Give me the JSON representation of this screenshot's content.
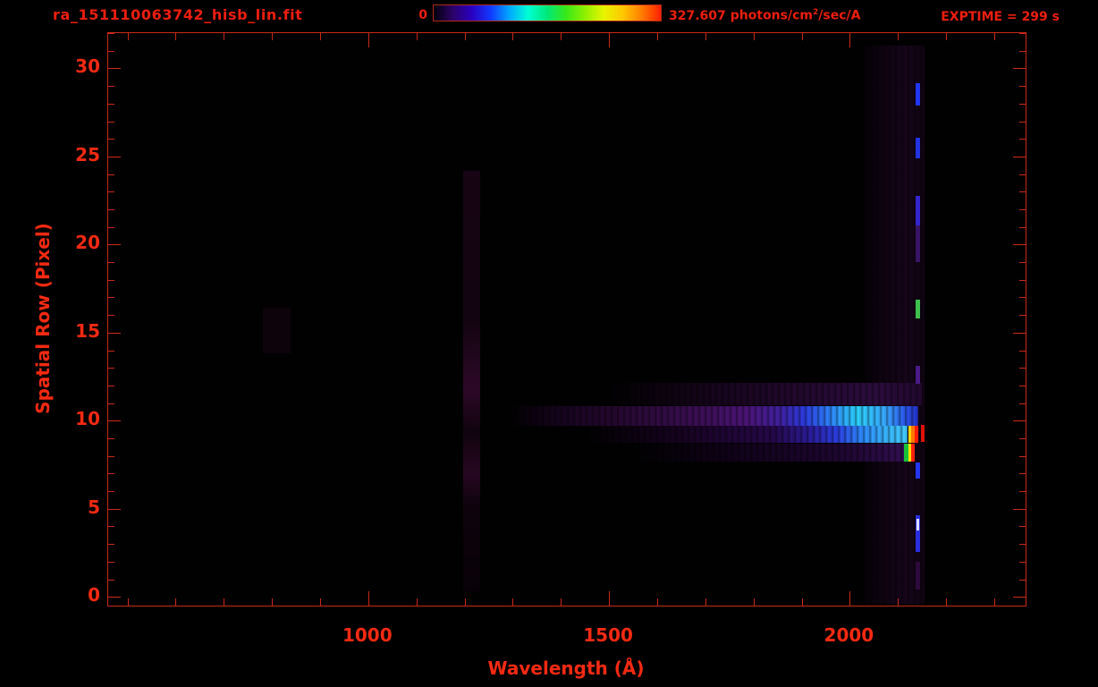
{
  "header": {
    "title": "ra_151110063742_hisb_lin.fit",
    "exptime": "EXPTIME = 299 s",
    "colorbar": {
      "min_label": "0",
      "max_value": "327.607",
      "unit_a": "photons/cm",
      "unit_exp": "2",
      "unit_b": "/sec/A",
      "gradient_stops": [
        "#02000a",
        "#2c0266",
        "#2a00c0",
        "#1238ff",
        "#00a8ff",
        "#00ffd4",
        "#00e87a",
        "#38e818",
        "#90f000",
        "#e8f400",
        "#ffc800",
        "#ff7c00",
        "#ff2000"
      ]
    }
  },
  "colors": {
    "annotation_red": "#ee1e0e",
    "axis_red": "#ca2917",
    "tick_label_red": "#f52a12",
    "background": "#000000"
  },
  "chart_data": {
    "type": "heatmap",
    "title": "ra_151110063742_hisb_lin.fit",
    "xlabel": "Wavelength (Å)",
    "ylabel": "Spatial Row (Pixel)",
    "xlim": [
      460,
      2365
    ],
    "ylim": [
      -0.5,
      32
    ],
    "x_major_ticks": [
      1000,
      1500,
      2000
    ],
    "x_minor_tick_step": 100,
    "x_minor_tick_range": [
      500,
      2300
    ],
    "y_major_ticks": [
      0,
      5,
      10,
      15,
      20,
      25,
      30
    ],
    "y_minor_tick_step": 1,
    "grid": false,
    "colorbar": {
      "min": 0,
      "max": 327.607,
      "units": "photons/cm²/sec/A",
      "position": "top"
    },
    "exposure": "EXPTIME = 299 s",
    "features": [
      {
        "name": "lyman-alpha-airglow-band",
        "wl": [
          1197,
          1233
        ],
        "rows": [
          0.3,
          24.2
        ],
        "orient": "v",
        "gradient": [
          {
            "at": 0,
            "color": "rgba(40,7,34,0.55)"
          },
          {
            "at": 35,
            "color": "rgba(34,6,30,0.5)"
          },
          {
            "at": 52,
            "color": "rgba(52,10,46,0.85)"
          },
          {
            "at": 62,
            "color": "rgba(30,5,26,0.5)"
          },
          {
            "at": 72,
            "color": "rgba(48,9,42,0.8)"
          },
          {
            "at": 80,
            "color": "rgba(28,5,24,0.45)"
          },
          {
            "at": 100,
            "color": "rgba(20,3,18,0.35)"
          }
        ]
      },
      {
        "name": "faint-continuum-smudge",
        "wl": [
          782,
          838
        ],
        "rows": [
          13.8,
          16.4
        ],
        "color": "rgba(26,5,22,0.45)"
      },
      {
        "name": "airglow-striated-band",
        "wl": [
          2028,
          2156
        ],
        "rows": [
          -0.4,
          31.3
        ],
        "orient": "h",
        "striation": true,
        "gradient": [
          {
            "at": 0,
            "color": "rgba(24,5,28,0.08)"
          },
          {
            "at": 25,
            "color": "rgba(30,7,36,0.4)"
          },
          {
            "at": 70,
            "color": "rgba(36,8,42,0.62)"
          },
          {
            "at": 100,
            "color": "rgba(28,6,32,0.5)"
          }
        ]
      },
      {
        "name": "continuum-band-row12",
        "wl": [
          1500,
          2150
        ],
        "rows": [
          10.85,
          12.15
        ],
        "orient": "h",
        "striation": true,
        "gradient": [
          {
            "at": 0,
            "color": "rgba(18,3,22,0)"
          },
          {
            "at": 30,
            "color": "rgba(24,5,30,0.85)"
          },
          {
            "at": 60,
            "color": "rgba(34,8,46,1)"
          },
          {
            "at": 85,
            "color": "rgba(44,12,62,1)"
          },
          {
            "at": 100,
            "color": "rgba(34,8,46,1)"
          }
        ]
      },
      {
        "name": "continuum-band-row10",
        "wl": [
          1295,
          2142
        ],
        "rows": [
          9.7,
          10.85
        ],
        "orient": "h",
        "striation": true,
        "gradient": [
          {
            "at": 0,
            "color": "rgba(6,0,8,0)"
          },
          {
            "at": 12,
            "color": "#16041e"
          },
          {
            "at": 30,
            "color": "#2a0936"
          },
          {
            "at": 48,
            "color": "#3d0f58"
          },
          {
            "at": 58,
            "color": "#4c1478"
          },
          {
            "at": 66,
            "color": "#41209f"
          },
          {
            "at": 72,
            "color": "#2c3ae0"
          },
          {
            "at": 78,
            "color": "#2e7ffa"
          },
          {
            "at": 85,
            "color": "#2cd2ff"
          },
          {
            "at": 92,
            "color": "#38a8ff"
          },
          {
            "at": 97,
            "color": "#2a55ee"
          },
          {
            "at": 100,
            "color": "#2330c4"
          }
        ]
      },
      {
        "name": "continuum-band-row9",
        "wl": [
          1455,
          2120
        ],
        "rows": [
          8.75,
          9.7
        ],
        "orient": "h",
        "striation": true,
        "gradient": [
          {
            "at": 0,
            "color": "rgba(10,1,14,0)"
          },
          {
            "at": 30,
            "color": "#180322"
          },
          {
            "at": 58,
            "color": "#26084a"
          },
          {
            "at": 70,
            "color": "#2c1d9e"
          },
          {
            "at": 78,
            "color": "#2b3ee0"
          },
          {
            "at": 86,
            "color": "#2e8cff"
          },
          {
            "at": 94,
            "color": "#38b8ff"
          },
          {
            "at": 100,
            "color": "#42ccff"
          }
        ]
      },
      {
        "name": "peak-emission-yellow-line",
        "wl": [
          2121,
          2128
        ],
        "rows": [
          8.75,
          9.7
        ],
        "color": "#ffd400"
      },
      {
        "name": "peak-emission-orange-line",
        "wl": [
          2128,
          2134
        ],
        "rows": [
          8.75,
          9.7
        ],
        "color": "#ff7800"
      },
      {
        "name": "peak-emission-red-line",
        "wl": [
          2134,
          2142
        ],
        "rows": [
          8.75,
          9.7
        ],
        "color": "#ff1c06"
      },
      {
        "name": "isolated-red-line",
        "wl": [
          2147,
          2155
        ],
        "rows": [
          8.8,
          9.75
        ],
        "color": "#e01208"
      },
      {
        "name": "continuum-band-row8",
        "wl": [
          1560,
          2113
        ],
        "rows": [
          7.65,
          8.7
        ],
        "orient": "h",
        "striation": true,
        "gradient": [
          {
            "at": 0,
            "color": "rgba(12,1,16,0)"
          },
          {
            "at": 45,
            "color": "#140320"
          },
          {
            "at": 75,
            "color": "#1e0630"
          },
          {
            "at": 92,
            "color": "#2a0b44"
          },
          {
            "at": 100,
            "color": "#331054"
          }
        ]
      },
      {
        "name": "row8-peak-green-line",
        "wl": [
          2113,
          2121
        ],
        "rows": [
          7.65,
          8.7
        ],
        "color": "#18c238"
      },
      {
        "name": "row8-peak-yellow-line",
        "wl": [
          2121,
          2127
        ],
        "rows": [
          7.65,
          8.7
        ],
        "color": "#ffe000"
      },
      {
        "name": "row8-peak-red-line",
        "wl": [
          2127,
          2135
        ],
        "rows": [
          7.65,
          8.7
        ],
        "color": "#ff2210"
      },
      {
        "name": "airglow-line-segment",
        "wl": [
          2136,
          2146
        ],
        "rows": [
          27.9,
          29.15
        ],
        "color": "#2136f2"
      },
      {
        "name": "airglow-line-segment",
        "wl": [
          2136,
          2146
        ],
        "rows": [
          24.9,
          26.05
        ],
        "color": "#2333e2"
      },
      {
        "name": "airglow-line-segment",
        "wl": [
          2136,
          2146
        ],
        "rows": [
          21.1,
          22.75
        ],
        "color": "#3425cf"
      },
      {
        "name": "airglow-line-segment",
        "wl": [
          2136,
          2146
        ],
        "rows": [
          19.0,
          21.1
        ],
        "color": "#381466"
      },
      {
        "name": "airglow-line-segment-green",
        "wl": [
          2136,
          2146
        ],
        "rows": [
          15.8,
          16.85
        ],
        "color": "#3fbf4e"
      },
      {
        "name": "airglow-line-segment",
        "wl": [
          2136,
          2146
        ],
        "rows": [
          12.1,
          13.1
        ],
        "color": "#4a1a86"
      },
      {
        "name": "airglow-line-segment",
        "wl": [
          2136,
          2146
        ],
        "rows": [
          6.7,
          7.65
        ],
        "color": "#2436f0"
      },
      {
        "name": "airglow-line-segment",
        "wl": [
          2136,
          2146
        ],
        "rows": [
          2.55,
          4.65
        ],
        "color": "#2a2ee0"
      },
      {
        "name": "airglow-line-segment-white",
        "wl": [
          2138,
          2144
        ],
        "rows": [
          3.75,
          4.45
        ],
        "color": "#dcdcff"
      },
      {
        "name": "airglow-line-segment",
        "wl": [
          2136,
          2146
        ],
        "rows": [
          0.4,
          2.0
        ],
        "color": "#2c0a3c"
      }
    ]
  }
}
